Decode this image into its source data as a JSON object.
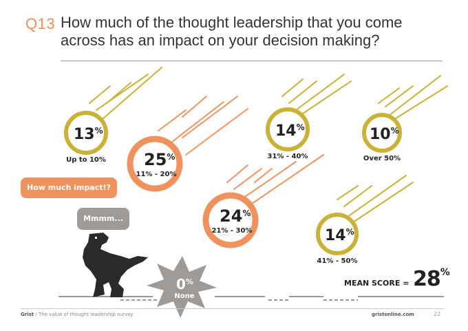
{
  "header": {
    "question_number": "Q13",
    "question": "How much of the thought leadership that you come across has an impact on your decision making?"
  },
  "chart_data": {
    "type": "bubble",
    "categories": [
      "Up to 10%",
      "11% - 20%",
      "21% - 30%",
      "31% - 40%",
      "41% - 50%",
      "Over 50%",
      "None"
    ],
    "values": [
      13,
      25,
      24,
      14,
      14,
      10,
      0
    ],
    "unit": "%",
    "mean_label": "MEAN SCORE =",
    "mean_value": 28
  },
  "speech": {
    "question": "How much impact!?",
    "answer": "Mmmm..."
  },
  "footer": {
    "brand": "Grist",
    "subtitle": "/ The value of thought leadership survey",
    "site": "gristonline.com",
    "page": "22"
  },
  "colors": {
    "gold": "#C9B237",
    "orange": "#F0925E",
    "grey": "#9E9A98",
    "dark": "#333333"
  }
}
